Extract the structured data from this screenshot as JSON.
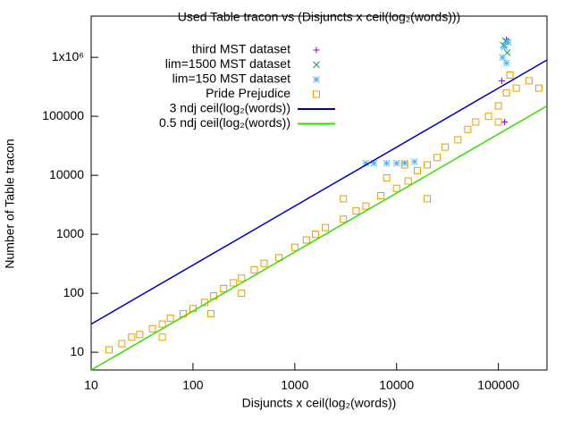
{
  "chart_data": {
    "type": "scatter",
    "title": "Used Table tracon vs (Disjuncts x ceil(log₂(words)))",
    "x_label": "Disjuncts x ceil(log₂(words))",
    "y_label": "Number of Table tracon",
    "x_scale": "log",
    "y_scale": "log",
    "xlim": [
      10,
      300000
    ],
    "ylim": [
      5,
      5000000
    ],
    "xticks": [
      10,
      100,
      1000,
      10000,
      100000
    ],
    "yticks": [
      10,
      100,
      1000,
      10000,
      100000,
      {
        "value": 1000000,
        "label": "1x10⁶"
      }
    ],
    "legend": "top-left",
    "series": [
      {
        "name": "third MST dataset",
        "color": "#9400d3",
        "marker": "plus",
        "x": [
          108000,
          115000,
          120000
        ],
        "values": [
          400000,
          80000,
          2000000
        ]
      },
      {
        "name": "lim=1500 MST dataset",
        "color": "#009e73",
        "marker": "cross",
        "x": [
          112000,
          118000,
          122000
        ],
        "values": [
          1600000,
          1900000,
          1200000
        ]
      },
      {
        "name": "lim=150 MST dataset",
        "color": "#56b4e9",
        "marker": "star",
        "x": [
          5000,
          6000,
          8000,
          10000,
          12000,
          15000,
          110000,
          115000,
          120000,
          125000
        ],
        "values": [
          16000,
          16000,
          16000,
          16000,
          16000,
          17000,
          1000000,
          1500000,
          800000,
          1800000
        ]
      },
      {
        "name": "Pride Prejudice",
        "color": "#e69f00",
        "marker": "square",
        "x": [
          15,
          20,
          25,
          30,
          40,
          50,
          60,
          80,
          100,
          130,
          160,
          200,
          250,
          300,
          400,
          500,
          700,
          1000,
          1300,
          1600,
          2000,
          3000,
          4000,
          5000,
          7000,
          10000,
          13000,
          16000,
          20000,
          25000,
          30000,
          40000,
          50000,
          60000,
          80000,
          100000,
          120000,
          150000,
          200000,
          250000,
          130000,
          100000,
          20000,
          8000,
          3000,
          300,
          150,
          50,
          12000
        ],
        "values": [
          11,
          14,
          18,
          20,
          25,
          30,
          38,
          45,
          55,
          70,
          90,
          120,
          150,
          180,
          250,
          320,
          400,
          600,
          800,
          1000,
          1300,
          1800,
          2500,
          3000,
          4500,
          6000,
          8000,
          12000,
          15000,
          20000,
          30000,
          40000,
          60000,
          80000,
          100000,
          150000,
          250000,
          300000,
          400000,
          300000,
          500000,
          80000,
          4000,
          9000,
          4000,
          100,
          45,
          18,
          15000
        ]
      },
      {
        "name": "3 ndj ceil(log₂(words))",
        "color": "#0000c0",
        "marker": "line",
        "x": [
          10,
          300000
        ],
        "values": [
          30,
          900000
        ]
      },
      {
        "name": "0.5 ndj ceil(log₂(words))",
        "color": "#33dd00",
        "marker": "line",
        "x": [
          10,
          300000
        ],
        "values": [
          5,
          150000
        ]
      }
    ]
  }
}
